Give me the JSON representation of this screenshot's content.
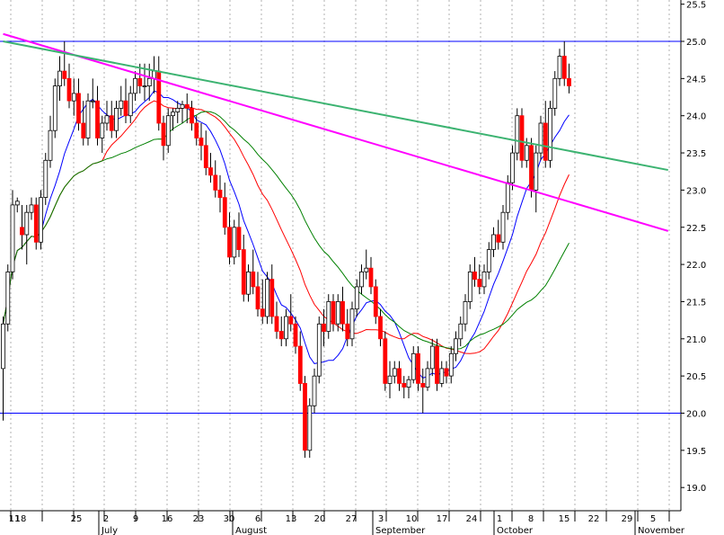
{
  "chart_data": {
    "type": "candlestick",
    "y_axis": {
      "range": [
        18.85,
        25.35
      ],
      "ticks": [
        "19.0",
        "19.5",
        "20.0",
        "20.5",
        "21.0",
        "21.5",
        "22.0",
        "22.5",
        "23.0",
        "23.5",
        "24.0",
        "24.5",
        "25.0",
        "25.5"
      ]
    },
    "x_axis": {
      "day_labels": [
        "11",
        "18",
        "25",
        "2",
        "9",
        "16",
        "23",
        "30",
        "6",
        "13",
        "20",
        "27",
        "3",
        "10",
        "17",
        "24",
        "1",
        "8",
        "15",
        "22",
        "29",
        "5"
      ],
      "month_labels": [
        "July",
        "August",
        "September",
        "October",
        "November"
      ]
    },
    "colors": {
      "up_candle_fill": "#ffffff",
      "down_candle_fill": "#ff0000",
      "ma_short": "#0000ff",
      "ma_medium": "#ff0000",
      "ma_long": "#008000",
      "trendline_magenta": "#ff00ff",
      "trendline_green": "#3cb371",
      "horizontal_lines": "#0000ff",
      "grid": "#b0b0b0"
    },
    "horizontal_lines": [
      25.0,
      20.0
    ],
    "trendlines": [
      {
        "color": "magenta",
        "from": [
          0,
          25.1
        ],
        "to": [
          141,
          22.45
        ]
      },
      {
        "color": "green",
        "from": [
          0,
          25.0
        ],
        "to": [
          141,
          23.27
        ]
      }
    ],
    "candles": [
      [
        20.6,
        21.3,
        19.9,
        21.2
      ],
      [
        21.2,
        22.0,
        21.1,
        21.9
      ],
      [
        21.9,
        23.0,
        21.8,
        22.8
      ],
      [
        22.8,
        22.9,
        22.7,
        22.85
      ],
      [
        22.5,
        22.8,
        22.2,
        22.4
      ],
      [
        22.4,
        22.8,
        22.0,
        22.7
      ],
      [
        22.7,
        22.9,
        22.6,
        22.8
      ],
      [
        22.8,
        22.9,
        22.2,
        22.3
      ],
      [
        22.3,
        23.0,
        22.2,
        22.9
      ],
      [
        22.9,
        23.5,
        22.8,
        23.4
      ],
      [
        23.4,
        24.0,
        23.3,
        23.8
      ],
      [
        23.8,
        24.5,
        23.7,
        24.4
      ],
      [
        24.4,
        24.8,
        24.2,
        24.6
      ],
      [
        24.6,
        25.0,
        24.4,
        24.5
      ],
      [
        24.5,
        24.7,
        24.1,
        24.2
      ],
      [
        24.2,
        24.5,
        24.0,
        24.3
      ],
      [
        24.3,
        24.5,
        23.8,
        23.9
      ],
      [
        23.9,
        24.2,
        23.6,
        23.7
      ],
      [
        23.7,
        24.3,
        23.6,
        24.2
      ],
      [
        24.2,
        24.5,
        24.1,
        24.2
      ],
      [
        24.2,
        24.4,
        23.6,
        23.7
      ],
      [
        23.7,
        24.0,
        23.5,
        23.9
      ],
      [
        23.9,
        24.2,
        23.8,
        24.0
      ],
      [
        24.0,
        24.2,
        23.7,
        23.8
      ],
      [
        23.8,
        24.2,
        23.7,
        24.1
      ],
      [
        24.1,
        24.4,
        24.0,
        24.2
      ],
      [
        24.2,
        24.5,
        23.9,
        24.0
      ],
      [
        24.0,
        24.4,
        23.9,
        24.3
      ],
      [
        24.3,
        24.6,
        24.2,
        24.5
      ],
      [
        24.5,
        24.7,
        24.3,
        24.4
      ],
      [
        24.4,
        24.7,
        24.2,
        24.4
      ],
      [
        24.4,
        24.7,
        24.2,
        24.5
      ],
      [
        24.5,
        24.8,
        24.3,
        24.6
      ],
      [
        24.6,
        24.8,
        23.8,
        23.9
      ],
      [
        23.9,
        24.0,
        23.4,
        23.6
      ],
      [
        23.6,
        24.1,
        23.5,
        24.0
      ],
      [
        24.0,
        24.1,
        23.8,
        24.05
      ],
      [
        24.05,
        24.2,
        23.9,
        24.1
      ],
      [
        24.1,
        24.2,
        23.9,
        24.15
      ],
      [
        24.15,
        24.3,
        23.9,
        24.1
      ],
      [
        24.1,
        24.2,
        23.8,
        23.9
      ],
      [
        23.9,
        24.0,
        23.6,
        23.7
      ],
      [
        23.7,
        23.9,
        23.4,
        23.6
      ],
      [
        23.6,
        23.8,
        23.2,
        23.3
      ],
      [
        23.3,
        23.5,
        23.1,
        23.2
      ],
      [
        23.2,
        23.4,
        22.9,
        23.0
      ],
      [
        23.0,
        23.2,
        22.7,
        22.9
      ],
      [
        22.9,
        23.1,
        22.4,
        22.5
      ],
      [
        22.5,
        22.7,
        22.0,
        22.1
      ],
      [
        22.1,
        22.6,
        22.0,
        22.5
      ],
      [
        22.5,
        22.7,
        22.1,
        22.2
      ],
      [
        22.2,
        22.4,
        21.5,
        21.6
      ],
      [
        21.6,
        22.0,
        21.5,
        21.9
      ],
      [
        21.9,
        22.2,
        21.6,
        21.7
      ],
      [
        21.7,
        21.9,
        21.3,
        21.4
      ],
      [
        21.4,
        21.8,
        21.2,
        21.3
      ],
      [
        21.3,
        21.9,
        21.2,
        21.8
      ],
      [
        21.8,
        22.0,
        21.2,
        21.3
      ],
      [
        21.3,
        21.5,
        21.0,
        21.1
      ],
      [
        21.1,
        21.3,
        20.9,
        21.0
      ],
      [
        21.0,
        21.4,
        20.9,
        21.3
      ],
      [
        21.3,
        21.6,
        21.1,
        21.2
      ],
      [
        21.2,
        21.3,
        20.8,
        20.9
      ],
      [
        20.9,
        21.1,
        20.3,
        20.4
      ],
      [
        20.4,
        20.5,
        19.4,
        19.5
      ],
      [
        19.5,
        20.2,
        19.4,
        20.1
      ],
      [
        20.1,
        20.6,
        20.0,
        20.5
      ],
      [
        20.5,
        21.3,
        20.4,
        21.2
      ],
      [
        21.2,
        21.4,
        20.9,
        21.1
      ],
      [
        21.1,
        21.6,
        21.0,
        21.5
      ],
      [
        21.5,
        21.6,
        21.1,
        21.2
      ],
      [
        21.2,
        21.6,
        21.1,
        21.5
      ],
      [
        21.5,
        21.7,
        21.1,
        21.2
      ],
      [
        21.2,
        21.4,
        20.9,
        21.0
      ],
      [
        21.0,
        21.5,
        20.9,
        21.4
      ],
      [
        21.4,
        21.8,
        21.3,
        21.7
      ],
      [
        21.7,
        22.0,
        21.6,
        21.9
      ],
      [
        21.9,
        22.2,
        21.8,
        21.95
      ],
      [
        21.95,
        22.1,
        21.6,
        21.7
      ],
      [
        21.7,
        21.8,
        21.2,
        21.3
      ],
      [
        21.3,
        21.4,
        20.9,
        21.0
      ],
      [
        21.0,
        21.1,
        20.3,
        20.4
      ],
      [
        20.4,
        20.7,
        20.2,
        20.5
      ],
      [
        20.5,
        20.7,
        20.4,
        20.6
      ],
      [
        20.6,
        20.7,
        20.3,
        20.4
      ],
      [
        20.4,
        20.5,
        20.2,
        20.35
      ],
      [
        20.35,
        20.5,
        20.2,
        20.45
      ],
      [
        20.45,
        20.9,
        20.4,
        20.8
      ],
      [
        20.8,
        20.9,
        20.3,
        20.4
      ],
      [
        20.4,
        20.6,
        20.0,
        20.35
      ],
      [
        20.35,
        20.7,
        20.3,
        20.6
      ],
      [
        20.6,
        21.0,
        20.5,
        20.9
      ],
      [
        20.9,
        21.0,
        20.3,
        20.4
      ],
      [
        20.4,
        20.7,
        20.35,
        20.6
      ],
      [
        20.6,
        20.7,
        20.4,
        20.5
      ],
      [
        20.5,
        20.9,
        20.4,
        20.8
      ],
      [
        20.8,
        21.1,
        20.7,
        21.0
      ],
      [
        21.0,
        21.3,
        20.9,
        21.2
      ],
      [
        21.2,
        21.6,
        21.1,
        21.5
      ],
      [
        21.5,
        22.0,
        21.4,
        21.9
      ],
      [
        21.9,
        22.1,
        21.7,
        21.8
      ],
      [
        21.8,
        22.0,
        21.6,
        21.7
      ],
      [
        21.7,
        22.0,
        21.6,
        21.9
      ],
      [
        21.9,
        22.3,
        21.8,
        22.2
      ],
      [
        22.2,
        22.5,
        22.1,
        22.4
      ],
      [
        22.4,
        22.6,
        22.2,
        22.3
      ],
      [
        22.3,
        22.8,
        22.2,
        22.7
      ],
      [
        22.7,
        23.2,
        22.6,
        23.1
      ],
      [
        23.1,
        23.6,
        23.0,
        23.5
      ],
      [
        23.5,
        24.1,
        23.4,
        24.0
      ],
      [
        24.0,
        24.1,
        23.3,
        23.4
      ],
      [
        23.4,
        23.7,
        23.3,
        23.6
      ],
      [
        23.6,
        23.7,
        22.9,
        23.0
      ],
      [
        23.0,
        23.6,
        22.7,
        23.5
      ],
      [
        23.5,
        24.0,
        23.4,
        23.9
      ],
      [
        23.9,
        24.2,
        23.3,
        23.4
      ],
      [
        23.4,
        24.2,
        23.3,
        24.1
      ],
      [
        24.1,
        24.6,
        24.0,
        24.5
      ],
      [
        24.5,
        24.9,
        24.4,
        24.8
      ],
      [
        24.8,
        25.0,
        24.4,
        24.5
      ],
      [
        24.5,
        24.7,
        24.3,
        24.4
      ]
    ]
  }
}
